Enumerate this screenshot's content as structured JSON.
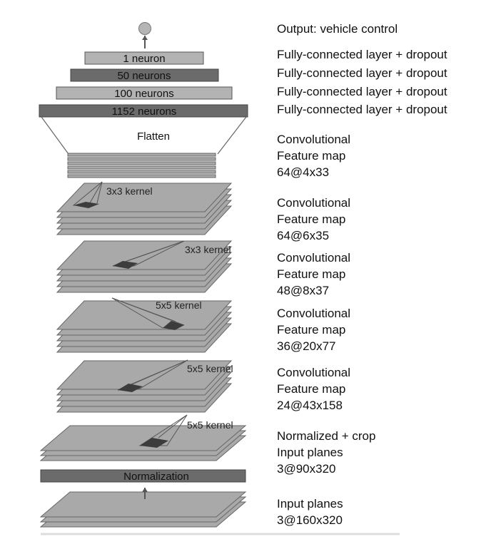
{
  "output_label": "Output: vehicle control",
  "fc_layers": [
    {
      "text": "1 neuron",
      "desc": "Fully-connected layer + dropout"
    },
    {
      "text": "50 neurons",
      "desc": "Fully-connected layer + dropout"
    },
    {
      "text": "100 neurons",
      "desc": "Fully-connected layer + dropout"
    },
    {
      "text": "1152 neurons",
      "desc": "Fully-connected layer + dropout"
    }
  ],
  "flatten_label": "Flatten",
  "feature_maps": [
    {
      "line1": "Convolutional",
      "line2": "Feature map",
      "line3": "64@4x33"
    },
    {
      "line1": "Convolutional",
      "line2": "Feature map",
      "line3": "64@6x35"
    },
    {
      "line1": "Convolutional",
      "line2": "Feature map",
      "line3": "48@8x37"
    },
    {
      "line1": "Convolutional",
      "line2": "Feature map",
      "line3": "36@20x77"
    },
    {
      "line1": "Convolutional",
      "line2": "Feature map",
      "line3": "24@43x158"
    }
  ],
  "kernels": [
    "3x3 kernel",
    "3x3 kernel",
    "5x5 kernel",
    "5x5 kernel",
    "5x5 kernel"
  ],
  "normalized": {
    "line1": "Normalized + crop",
    "line2": "Input planes",
    "line3": "3@90x320"
  },
  "normalization_label": "Normalization",
  "input": {
    "line1": "Input planes",
    "line2": "3@160x320"
  },
  "colors": {
    "plane_fill": "#a9a9a9",
    "plane_stroke": "#666666",
    "fc_light": "#b3b3b3",
    "fc_dark": "#6b6b6b",
    "output_node": "#b5b5b5",
    "kernel_fill": "#3c3c3c",
    "line": "#555555"
  }
}
